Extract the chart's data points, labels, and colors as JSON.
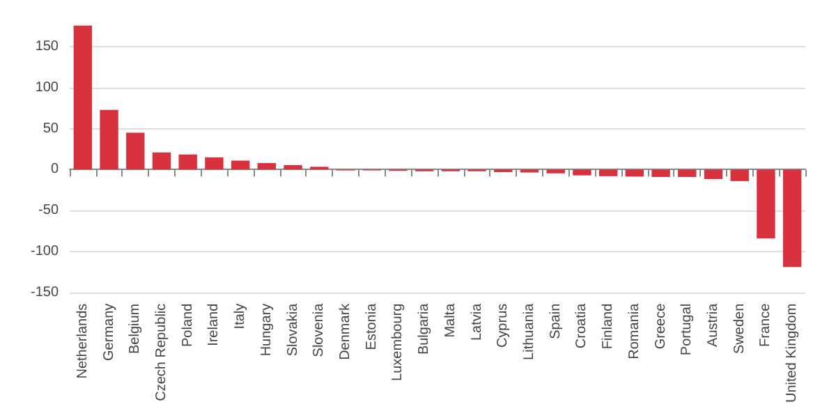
{
  "chart_data": {
    "type": "bar",
    "categories": [
      "Netherlands",
      "Germany",
      "Belgium",
      "Czech Republic",
      "Poland",
      "Ireland",
      "Italy",
      "Hungary",
      "Slovakia",
      "Slovenia",
      "Denmark",
      "Estonia",
      "Luxembourg",
      "Bulgaria",
      "Malta",
      "Latvia",
      "Cyprus",
      "Lithuania",
      "Spain",
      "Croatia",
      "Finland",
      "Romania",
      "Greece",
      "Portugal",
      "Austria",
      "Sweden",
      "France",
      "United Kingdom"
    ],
    "values": [
      176,
      73,
      45,
      21,
      18.5,
      15,
      11,
      8,
      5.5,
      3.5,
      -1,
      -1,
      -1.5,
      -2,
      -2,
      -2,
      -3,
      -3.5,
      -4.5,
      -7,
      -8,
      -8.5,
      -9,
      -9,
      -11.5,
      -14,
      -84,
      -119
    ],
    "color": "#d7323e",
    "ylim": [
      -150,
      180
    ],
    "yticks": [
      -150,
      -100,
      -50,
      0,
      50,
      100,
      150
    ],
    "grid": "y"
  }
}
